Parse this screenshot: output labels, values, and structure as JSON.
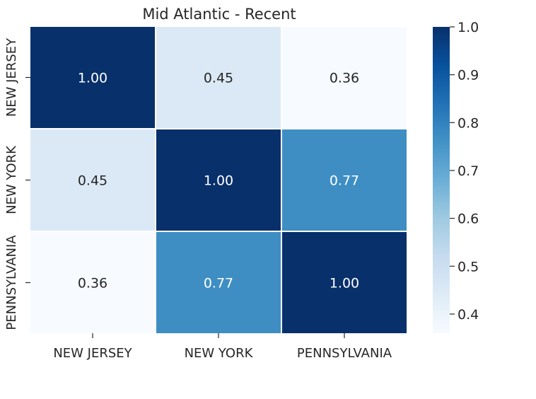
{
  "chart_data": {
    "type": "heatmap",
    "title": "Mid Atlantic - Recent",
    "x_labels": [
      "NEW JERSEY",
      "NEW YORK",
      "PENNSYLVANIA"
    ],
    "y_labels": [
      "NEW JERSEY",
      "NEW YORK",
      "PENNSYLVANIA"
    ],
    "values": [
      [
        1.0,
        0.45,
        0.36
      ],
      [
        0.45,
        1.0,
        0.77
      ],
      [
        0.36,
        0.77,
        1.0
      ]
    ],
    "cell_labels": [
      [
        "1.00",
        "0.45",
        "0.36"
      ],
      [
        "0.45",
        "1.00",
        "0.77"
      ],
      [
        "0.36",
        "0.77",
        "1.00"
      ]
    ],
    "colormap": "Blues",
    "colorbar": {
      "range": [
        0.36,
        1.0
      ],
      "ticks": [
        0.4,
        0.5,
        0.6,
        0.7,
        0.8,
        0.9,
        1.0
      ],
      "tick_labels": [
        "0.4",
        "0.5",
        "0.6",
        "0.7",
        "0.8",
        "0.9",
        "1.0"
      ]
    },
    "grid": false,
    "cell_separator_color": "#ffffff",
    "text_color_dark": "#262626",
    "text_color_light": "#ffffff"
  }
}
